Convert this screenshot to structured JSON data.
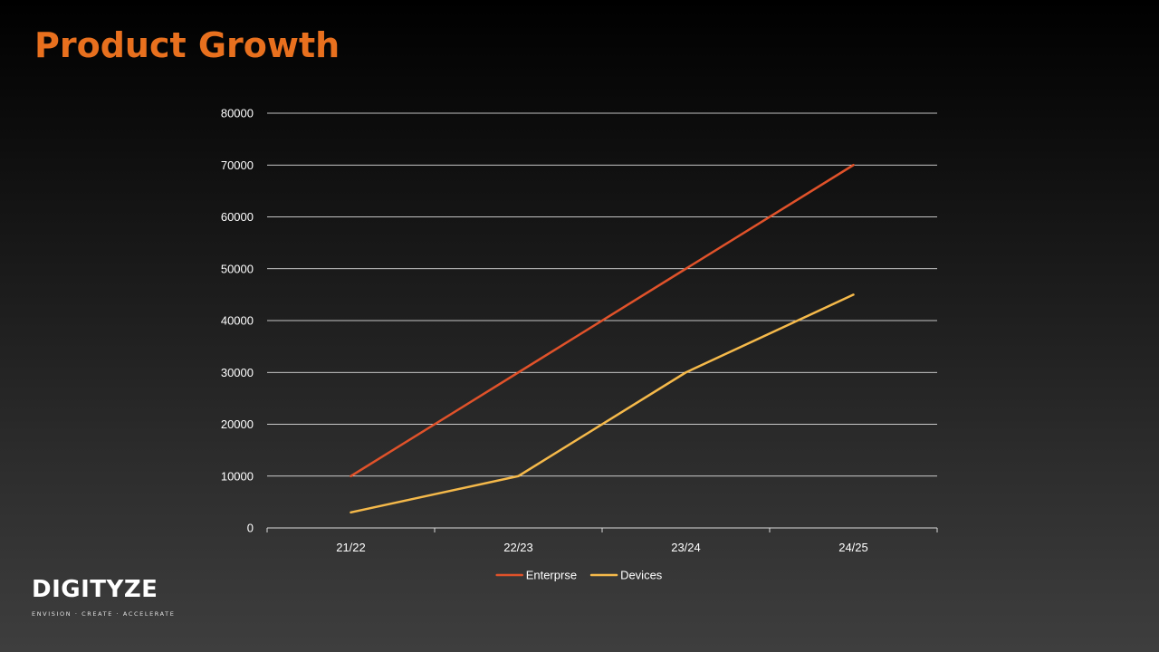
{
  "slide": {
    "title": "Product Growth"
  },
  "logo": {
    "name": "DIGITYZE",
    "tagline": "ENVISION · CREATE · ACCELERATE"
  },
  "colors": {
    "title": "#e8701e",
    "enterprise": "#e0522a",
    "devices": "#f5b94a",
    "gridline": "#ffffff",
    "text": "#ffffff"
  },
  "chart_data": {
    "type": "line",
    "categories": [
      "21/22",
      "22/23",
      "23/24",
      "24/25"
    ],
    "series": [
      {
        "name": "Enterprse",
        "values": [
          10000,
          30000,
          50000,
          70000
        ],
        "color": "#e0522a"
      },
      {
        "name": "Devices",
        "values": [
          3000,
          10000,
          30000,
          45000
        ],
        "color": "#f5b94a"
      }
    ],
    "ylim": [
      0,
      80000
    ],
    "yticks": [
      0,
      10000,
      20000,
      30000,
      40000,
      50000,
      60000,
      70000,
      80000
    ],
    "grid": true,
    "legend": "bottom-center",
    "xlabel": "",
    "ylabel": ""
  }
}
